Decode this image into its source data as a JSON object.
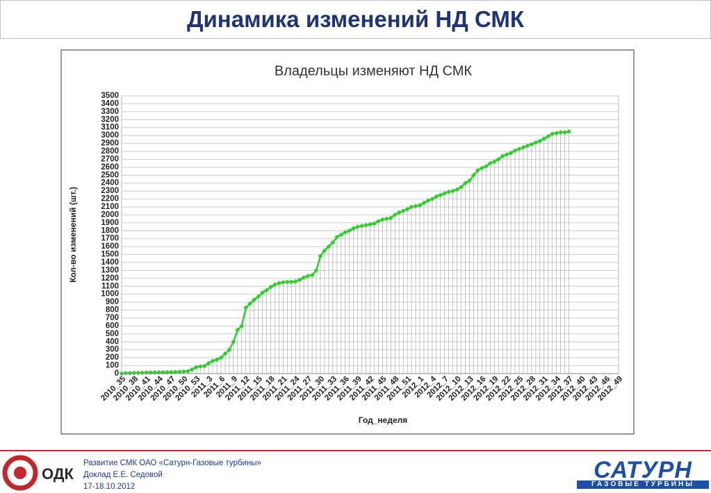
{
  "header": {
    "title": "Динамика изменений НД СМК"
  },
  "chart_data": {
    "type": "line",
    "title": "Владельцы изменяют НД СМК",
    "y_label": "Кол-во изменений (шт.)",
    "x_label": "Год_неделя",
    "color": "#33cc33",
    "grid": true,
    "categories": [
      "2010_35",
      null,
      null,
      "2010_38",
      null,
      null,
      "2010_41",
      null,
      null,
      "2010_44",
      null,
      null,
      "2010_47",
      null,
      null,
      "2010_50",
      null,
      null,
      "2010_53",
      null,
      null,
      "2011_3",
      null,
      null,
      "2011_6",
      null,
      null,
      "2011_9",
      null,
      null,
      "2011_12",
      null,
      null,
      "2011_15",
      null,
      null,
      "2011_18",
      null,
      null,
      "2011_21",
      null,
      null,
      "2011_24",
      null,
      null,
      "2011_27",
      null,
      null,
      "2011_30",
      null,
      null,
      "2011_33",
      null,
      null,
      "2011_36",
      null,
      null,
      "2011_39",
      null,
      null,
      "2011_42",
      null,
      null,
      "2011_45",
      null,
      null,
      "2011_48",
      null,
      null,
      "2011_51",
      null,
      null,
      "2012_1",
      null,
      null,
      "2012_4",
      null,
      null,
      "2012_7",
      null,
      null,
      "2012_10",
      null,
      null,
      "2012_13",
      null,
      null,
      "2012_16",
      null,
      null,
      "2012_19",
      null,
      null,
      "2012_22",
      null,
      null,
      "2012_25",
      null,
      null,
      "2012_28",
      null,
      null,
      "2012_31",
      null,
      null,
      "2012_34",
      null,
      null,
      "2012_37",
      null,
      null,
      "2012_40",
      null,
      null,
      "2012_43",
      null,
      null,
      "2012_46",
      null,
      null,
      "2012_49"
    ],
    "values": [
      0,
      5,
      5,
      8,
      10,
      10,
      12,
      12,
      14,
      15,
      15,
      16,
      18,
      20,
      22,
      25,
      30,
      50,
      80,
      90,
      95,
      130,
      160,
      175,
      200,
      250,
      300,
      400,
      550,
      600,
      830,
      880,
      930,
      970,
      1020,
      1050,
      1090,
      1120,
      1140,
      1150,
      1155,
      1155,
      1160,
      1180,
      1210,
      1230,
      1240,
      1300,
      1480,
      1550,
      1600,
      1650,
      1720,
      1750,
      1780,
      1800,
      1830,
      1850,
      1860,
      1870,
      1880,
      1890,
      1920,
      1940,
      1950,
      1960,
      2000,
      2030,
      2050,
      2070,
      2100,
      2110,
      2120,
      2150,
      2180,
      2200,
      2230,
      2250,
      2270,
      2290,
      2300,
      2320,
      2350,
      2400,
      2430,
      2500,
      2560,
      2590,
      2610,
      2650,
      2670,
      2700,
      2740,
      2760,
      2780,
      2810,
      2830,
      2850,
      2870,
      2890,
      2910,
      2930,
      2960,
      2990,
      3020,
      3030,
      3040,
      3040,
      3050,
      null,
      null,
      null,
      null,
      null,
      null,
      null,
      null,
      null,
      null,
      null,
      null
    ],
    "ylim": [
      0,
      3500
    ],
    "yticks": [
      0,
      100,
      200,
      300,
      400,
      500,
      600,
      700,
      800,
      900,
      1000,
      1100,
      1200,
      1300,
      1400,
      1500,
      1600,
      1700,
      1800,
      1900,
      2000,
      2100,
      2200,
      2300,
      2400,
      2500,
      2600,
      2700,
      2800,
      2900,
      3000,
      3100,
      3200,
      3300,
      3400,
      3500
    ]
  },
  "footer": {
    "lines": [
      "Развитие СМК ОАО «Сатурн-Газовые турбины»",
      "Доклад Е.Е. Седовой",
      "17-18.10.2012"
    ],
    "logo_left": "ОДК",
    "logo_right": "САТУРН",
    "logo_right_sub": "ГАЗОВЫЕ ТУРБИНЫ"
  }
}
